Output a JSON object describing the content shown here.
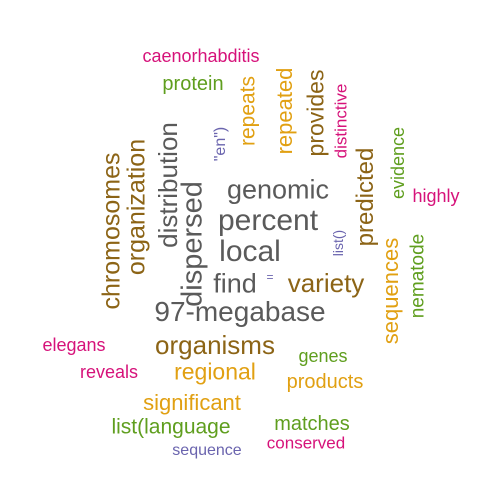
{
  "colors": {
    "gray": "#5a5a5a",
    "brown": "#8c6416",
    "orange": "#e1a012",
    "green": "#5f9e1e",
    "pink": "#d6127a",
    "purple": "#6a64ae"
  },
  "words": {
    "caenorhabditis": "caenorhabditis",
    "protein": "protein",
    "repeats": "repeats",
    "repeated": "repeated",
    "provides": "provides",
    "distinctive": "distinctive",
    "en": "\"en\")",
    "evidence": "evidence",
    "highly": "highly",
    "chromosomes": "chromosomes",
    "organization": "organization",
    "distribution": "distribution",
    "dispersed": "dispersed",
    "genomic": "genomic",
    "percent": "percent",
    "local": "local",
    "list": "list()",
    "predicted": "predicted",
    "sequences": "sequences",
    "nematode": "nematode",
    "find": "find",
    "equals": "=",
    "variety": "variety",
    "megabase": "97-megabase",
    "elegans": "elegans",
    "organisms": "organisms",
    "genes": "genes",
    "reveals": "reveals",
    "regional": "regional",
    "products": "products",
    "significant": "significant",
    "list_language": "list(language",
    "matches": "matches",
    "conserved": "conserved",
    "sequence": "sequence"
  }
}
